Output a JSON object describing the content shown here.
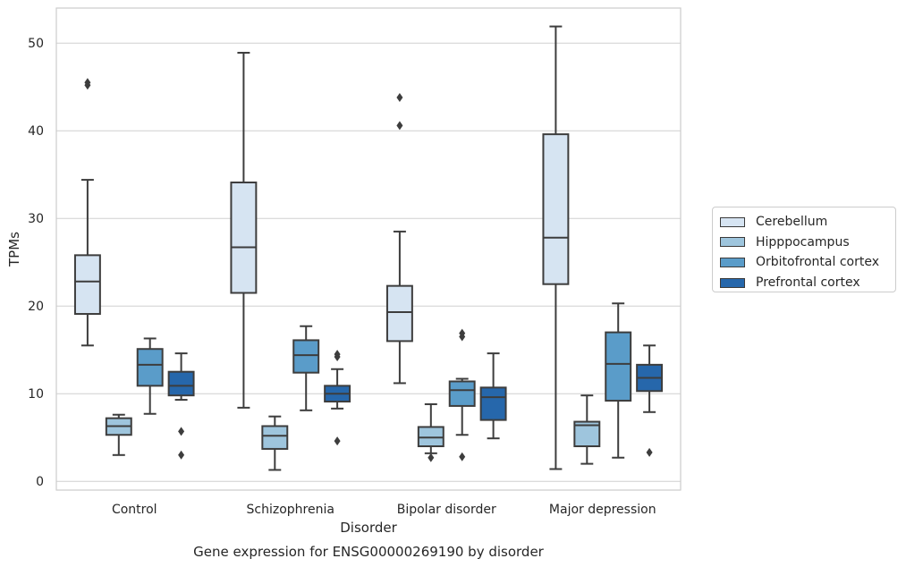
{
  "chart_data": {
    "type": "box",
    "title": "Gene expression for ENSG00000269190 by disorder",
    "xlabel": "Disorder",
    "ylabel": "TPMs",
    "ylim": [
      -1,
      54
    ],
    "yticks": [
      0,
      10,
      20,
      30,
      40,
      50
    ],
    "grid": true,
    "legend_position": "right",
    "categories": [
      "Control",
      "Schizophrenia",
      "Bipolar disorder",
      "Major depression"
    ],
    "series": [
      {
        "name": "Cerebellum",
        "color": "#d6e4f2",
        "boxes": [
          {
            "whisker_low": 15.5,
            "q1": 19.1,
            "median": 22.8,
            "q3": 25.8,
            "whisker_high": 34.4,
            "outliers": [
              45.2,
              45.5
            ]
          },
          {
            "whisker_low": 8.4,
            "q1": 21.5,
            "median": 26.7,
            "q3": 34.1,
            "whisker_high": 48.9,
            "outliers": []
          },
          {
            "whisker_low": 11.2,
            "q1": 16.0,
            "median": 19.3,
            "q3": 22.3,
            "whisker_high": 28.5,
            "outliers": [
              40.6,
              43.8
            ]
          },
          {
            "whisker_low": 1.4,
            "q1": 22.5,
            "median": 27.8,
            "q3": 39.6,
            "whisker_high": 51.9,
            "outliers": []
          }
        ]
      },
      {
        "name": "Hipppocampus",
        "color": "#9ec5dd",
        "boxes": [
          {
            "whisker_low": 3.0,
            "q1": 5.3,
            "median": 6.3,
            "q3": 7.2,
            "whisker_high": 7.6,
            "outliers": []
          },
          {
            "whisker_low": 1.3,
            "q1": 3.7,
            "median": 5.2,
            "q3": 6.3,
            "whisker_high": 7.4,
            "outliers": []
          },
          {
            "whisker_low": 3.2,
            "q1": 4.0,
            "median": 5.0,
            "q3": 6.2,
            "whisker_high": 8.8,
            "outliers": [
              2.7
            ]
          },
          {
            "whisker_low": 2.0,
            "q1": 4.0,
            "median": 6.4,
            "q3": 6.8,
            "whisker_high": 9.8,
            "outliers": []
          }
        ]
      },
      {
        "name": "Orbitofrontal cortex",
        "color": "#5a9cc9",
        "boxes": [
          {
            "whisker_low": 7.7,
            "q1": 10.9,
            "median": 13.3,
            "q3": 15.1,
            "whisker_high": 16.3,
            "outliers": []
          },
          {
            "whisker_low": 8.1,
            "q1": 12.4,
            "median": 14.4,
            "q3": 16.1,
            "whisker_high": 17.7,
            "outliers": []
          },
          {
            "whisker_low": 5.3,
            "q1": 8.6,
            "median": 10.4,
            "q3": 11.4,
            "whisker_high": 11.7,
            "outliers": [
              2.8,
              16.5,
              16.9
            ]
          },
          {
            "whisker_low": 2.7,
            "q1": 9.2,
            "median": 13.4,
            "q3": 17.0,
            "whisker_high": 20.3,
            "outliers": []
          }
        ]
      },
      {
        "name": "Prefrontal cortex",
        "color": "#2667ab",
        "boxes": [
          {
            "whisker_low": 9.3,
            "q1": 9.8,
            "median": 10.9,
            "q3": 12.5,
            "whisker_high": 14.6,
            "outliers": [
              3.0,
              5.7
            ]
          },
          {
            "whisker_low": 8.3,
            "q1": 9.1,
            "median": 10.0,
            "q3": 10.9,
            "whisker_high": 12.8,
            "outliers": [
              4.6,
              14.2,
              14.5
            ]
          },
          {
            "whisker_low": 4.9,
            "q1": 7.0,
            "median": 9.6,
            "q3": 10.7,
            "whisker_high": 14.6,
            "outliers": []
          },
          {
            "whisker_low": 7.9,
            "q1": 10.3,
            "median": 11.8,
            "q3": 13.3,
            "whisker_high": 15.5,
            "outliers": [
              3.3
            ]
          }
        ]
      }
    ]
  }
}
